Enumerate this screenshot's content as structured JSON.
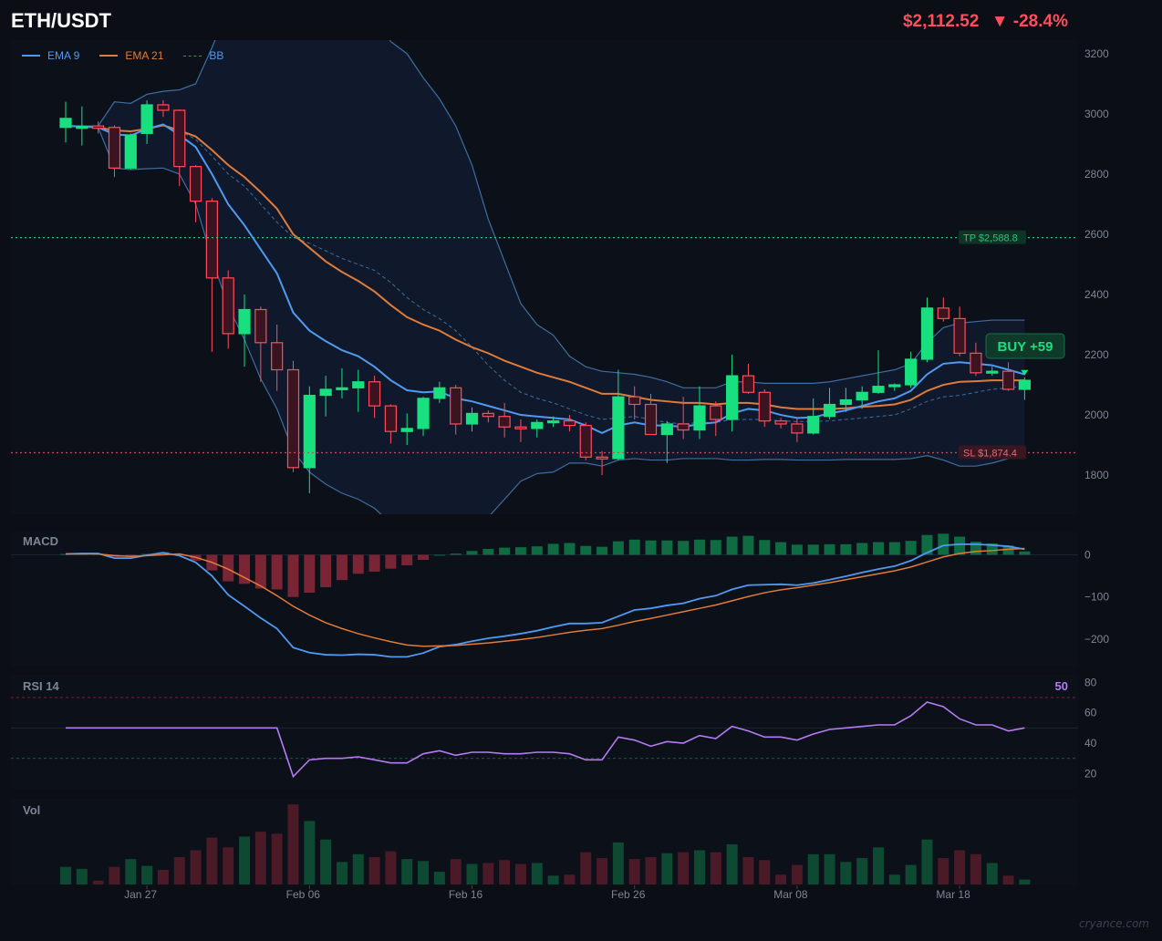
{
  "header": {
    "symbol": "ETH/USDT",
    "price_text": "$2,112.52",
    "change_text": "▼ -28.4%"
  },
  "legend": {
    "ema9_label": "EMA 9",
    "ema21_label": "EMA 21",
    "bb_label": "BB"
  },
  "colors": {
    "background": "#0b0e14",
    "up": "#19e07f",
    "down": "#ff4d5e",
    "ema9": "#4f9af0",
    "ema21": "#e07b39",
    "bb": "#3e6da0",
    "tp": "#1ec97a",
    "sl": "#c94a5e",
    "rsi": "#b57cf2",
    "macd_line": "#4f9af0",
    "signal_line": "#e07b39",
    "buy": "#19e07f"
  },
  "levels": {
    "tp_label": "TP $2,588.8",
    "tp_value": 2588.8,
    "sl_label": "SL $1,874.4",
    "sl_value": 1874.4
  },
  "trade": {
    "label": "BUY  +59"
  },
  "panels": {
    "macd_title": "MACD",
    "rsi_title": "RSI 14",
    "rsi_value_text": "50",
    "vol_title": "Vol"
  },
  "watermark": "cryance.com",
  "chart_data": [
    {
      "type": "candlestick",
      "xlabel": "",
      "ylabel": "",
      "ylim": [
        1670,
        3245
      ],
      "yticks": [
        "1800",
        "2000",
        "2200",
        "2400",
        "2600",
        "2800",
        "3000",
        "3200"
      ],
      "x_tick_labels": [
        "Jan 27",
        "Feb 06",
        "Feb 16",
        "Feb 26",
        "Mar 08",
        "Mar 18"
      ],
      "x_tick_index": [
        5,
        15,
        25,
        35,
        45,
        55
      ],
      "ohlc": [
        [
          2955,
          3040,
          2905,
          2985
        ],
        [
          2955,
          3025,
          2895,
          2958
        ],
        [
          2960,
          2975,
          2935,
          2952
        ],
        [
          2955,
          2962,
          2790,
          2820
        ],
        [
          2820,
          2935,
          2815,
          2930
        ],
        [
          2935,
          3045,
          2900,
          3030
        ],
        [
          3030,
          3045,
          2990,
          3012
        ],
        [
          3012,
          3015,
          2760,
          2825
        ],
        [
          2825,
          2830,
          2640,
          2710
        ],
        [
          2710,
          2720,
          2210,
          2455
        ],
        [
          2455,
          2480,
          2220,
          2270
        ],
        [
          2270,
          2400,
          2160,
          2350
        ],
        [
          2350,
          2360,
          2110,
          2240
        ],
        [
          2240,
          2300,
          2080,
          2150
        ],
        [
          2150,
          2180,
          1810,
          1825
        ],
        [
          1825,
          2095,
          1740,
          2065
        ],
        [
          2065,
          2130,
          1995,
          2085
        ],
        [
          2085,
          2155,
          2055,
          2090
        ],
        [
          2090,
          2150,
          2010,
          2110
        ],
        [
          2110,
          2130,
          1990,
          2030
        ],
        [
          2030,
          2035,
          1905,
          1945
        ],
        [
          1945,
          2005,
          1900,
          1955
        ],
        [
          1955,
          2060,
          1930,
          2055
        ],
        [
          2055,
          2110,
          2040,
          2090
        ],
        [
          2090,
          2100,
          1935,
          1970
        ],
        [
          1970,
          2025,
          1945,
          2005
        ],
        [
          2005,
          2015,
          1975,
          1995
        ],
        [
          1995,
          2040,
          1925,
          1960
        ],
        [
          1960,
          1985,
          1910,
          1955
        ],
        [
          1955,
          1985,
          1925,
          1975
        ],
        [
          1975,
          1995,
          1960,
          1980
        ],
        [
          1980,
          2000,
          1945,
          1965
        ],
        [
          1965,
          1975,
          1850,
          1860
        ],
        [
          1860,
          1880,
          1800,
          1855
        ],
        [
          1855,
          2150,
          1850,
          2060
        ],
        [
          2060,
          2095,
          1985,
          2035
        ],
        [
          2035,
          2070,
          1950,
          1935
        ],
        [
          1935,
          1980,
          1840,
          1970
        ],
        [
          1970,
          2060,
          1920,
          1950
        ],
        [
          1950,
          2095,
          1920,
          2030
        ],
        [
          2030,
          2045,
          1930,
          1985
        ],
        [
          1985,
          2200,
          1945,
          2130
        ],
        [
          2130,
          2170,
          2070,
          2075
        ],
        [
          2075,
          2085,
          1960,
          1980
        ],
        [
          1980,
          1990,
          1955,
          1970
        ],
        [
          1970,
          1990,
          1910,
          1940
        ],
        [
          1940,
          2055,
          1935,
          1995
        ],
        [
          1995,
          2090,
          1985,
          2035
        ],
        [
          2035,
          2090,
          2010,
          2050
        ],
        [
          2050,
          2095,
          2020,
          2075
        ],
        [
          2075,
          2215,
          2070,
          2095
        ],
        [
          2095,
          2105,
          2080,
          2100
        ],
        [
          2100,
          2210,
          2090,
          2185
        ],
        [
          2185,
          2390,
          2175,
          2355
        ],
        [
          2355,
          2390,
          2310,
          2320
        ],
        [
          2320,
          2360,
          2195,
          2205
        ],
        [
          2205,
          2240,
          2130,
          2140
        ],
        [
          2140,
          2160,
          2130,
          2145
        ],
        [
          2145,
          2175,
          2080,
          2085
        ],
        [
          2085,
          2125,
          2050,
          2115
        ]
      ],
      "ema9": [
        2960,
        2958,
        2955,
        2932,
        2928,
        2950,
        2965,
        2930,
        2890,
        2800,
        2700,
        2630,
        2550,
        2470,
        2340,
        2280,
        2245,
        2215,
        2195,
        2160,
        2115,
        2082,
        2075,
        2078,
        2055,
        2045,
        2030,
        2015,
        2000,
        1995,
        1990,
        1985,
        1965,
        1940,
        1965,
        1975,
        1965,
        1965,
        1960,
        1970,
        1975,
        2005,
        2020,
        2015,
        2000,
        1990,
        1992,
        2005,
        2015,
        2030,
        2045,
        2055,
        2080,
        2135,
        2170,
        2175,
        2170,
        2165,
        2150,
        2135
      ],
      "ema21": [
        2960,
        2958,
        2955,
        2945,
        2942,
        2950,
        2962,
        2945,
        2925,
        2880,
        2830,
        2790,
        2740,
        2685,
        2600,
        2555,
        2510,
        2475,
        2445,
        2410,
        2365,
        2325,
        2300,
        2280,
        2250,
        2225,
        2205,
        2180,
        2160,
        2140,
        2125,
        2110,
        2090,
        2070,
        2070,
        2060,
        2050,
        2045,
        2040,
        2040,
        2035,
        2040,
        2040,
        2035,
        2025,
        2020,
        2020,
        2020,
        2022,
        2027,
        2030,
        2035,
        2050,
        2080,
        2100,
        2110,
        2112,
        2115,
        2115,
        2115
      ],
      "bb_upper": [
        2960,
        2960,
        2960,
        3040,
        3035,
        3065,
        3075,
        3080,
        3100,
        3220,
        3350,
        3450,
        3520,
        3560,
        3600,
        3600,
        3550,
        3500,
        3420,
        3330,
        3240,
        3200,
        3120,
        3050,
        2960,
        2830,
        2650,
        2510,
        2370,
        2300,
        2265,
        2195,
        2160,
        2145,
        2140,
        2135,
        2125,
        2110,
        2090,
        2090,
        2090,
        2110,
        2110,
        2105,
        2105,
        2105,
        2105,
        2110,
        2120,
        2130,
        2140,
        2150,
        2170,
        2240,
        2290,
        2305,
        2310,
        2315,
        2315,
        2315
      ],
      "bb_mid": [
        2960,
        2958,
        2955,
        2945,
        2942,
        2950,
        2962,
        2945,
        2915,
        2860,
        2800,
        2760,
        2700,
        2640,
        2590,
        2570,
        2545,
        2520,
        2500,
        2480,
        2440,
        2390,
        2350,
        2320,
        2280,
        2225,
        2165,
        2115,
        2075,
        2055,
        2040,
        2020,
        2000,
        1985,
        1990,
        1995,
        1985,
        1975,
        1970,
        1975,
        1975,
        1985,
        1985,
        1985,
        1980,
        1978,
        1978,
        1980,
        1985,
        1990,
        1995,
        2000,
        2020,
        2045,
        2060,
        2065,
        2075,
        2085,
        2090,
        2095
      ],
      "bb_lower": [
        2960,
        2958,
        2955,
        2820,
        2815,
        2818,
        2820,
        2800,
        2700,
        2520,
        2360,
        2250,
        2120,
        2020,
        1880,
        1810,
        1770,
        1740,
        1720,
        1690,
        1640,
        1580,
        1540,
        1520,
        1530,
        1600,
        1660,
        1720,
        1780,
        1805,
        1810,
        1840,
        1840,
        1830,
        1850,
        1855,
        1850,
        1850,
        1855,
        1855,
        1855,
        1850,
        1850,
        1852,
        1852,
        1850,
        1850,
        1850,
        1852,
        1852,
        1852,
        1852,
        1855,
        1865,
        1850,
        1830,
        1830,
        1840,
        1855,
        1865
      ],
      "volume": [
        18,
        16,
        4,
        18,
        26,
        19,
        15,
        28,
        35,
        48,
        38,
        49,
        54,
        52,
        82,
        65,
        46,
        23,
        31,
        28,
        34,
        26,
        24,
        13,
        26,
        21,
        22,
        25,
        21,
        22,
        9,
        10,
        33,
        27,
        43,
        26,
        28,
        32,
        33,
        35,
        33,
        41,
        28,
        25,
        10,
        20,
        31,
        31,
        23,
        27,
        38,
        10,
        20,
        46,
        27,
        35,
        31,
        22,
        9,
        5
      ]
    },
    {
      "type": "bar+line",
      "title": "MACD",
      "ylim": [
        -265,
        55
      ],
      "yticks": [
        "0",
        "−100",
        "−200"
      ],
      "histogram": [
        2,
        2,
        2,
        -5,
        -4,
        2,
        6,
        -2,
        -14,
        -37,
        -63,
        -69,
        -80,
        -82,
        -100,
        -90,
        -77,
        -60,
        -45,
        -40,
        -33,
        -25,
        -12,
        0,
        3,
        9,
        14,
        17,
        18,
        20,
        26,
        28,
        21,
        19,
        32,
        36,
        34,
        34,
        33,
        36,
        35,
        43,
        45,
        35,
        30,
        24,
        24,
        25,
        25,
        28,
        30,
        30,
        33,
        47,
        50,
        43,
        31,
        27,
        22,
        8
      ],
      "macd": [
        2,
        3,
        3,
        -8,
        -8,
        -1,
        5,
        -2,
        -18,
        -50,
        -95,
        -122,
        -150,
        -175,
        -220,
        -232,
        -237,
        -238,
        -236,
        -237,
        -242,
        -242,
        -233,
        -218,
        -213,
        -205,
        -198,
        -193,
        -187,
        -180,
        -171,
        -163,
        -163,
        -161,
        -146,
        -131,
        -127,
        -120,
        -115,
        -104,
        -97,
        -82,
        -72,
        -71,
        -70,
        -72,
        -67,
        -59,
        -51,
        -42,
        -34,
        -27,
        -14,
        5,
        22,
        25,
        25,
        23,
        20,
        13
      ],
      "signal": [
        2,
        2,
        2,
        -2,
        -4,
        -2,
        0,
        2,
        -6,
        -18,
        -34,
        -54,
        -74,
        -97,
        -122,
        -143,
        -161,
        -175,
        -187,
        -197,
        -206,
        -214,
        -217,
        -216,
        -215,
        -212,
        -209,
        -205,
        -201,
        -196,
        -190,
        -184,
        -179,
        -175,
        -167,
        -158,
        -151,
        -143,
        -135,
        -127,
        -119,
        -109,
        -99,
        -90,
        -83,
        -78,
        -72,
        -66,
        -59,
        -52,
        -45,
        -38,
        -29,
        -17,
        -5,
        3,
        8,
        10,
        13,
        15
      ]
    },
    {
      "type": "line",
      "title": "RSI 14",
      "ylim": [
        10,
        85
      ],
      "yticks": [
        "80",
        "60",
        "40",
        "20"
      ],
      "levels": [
        70,
        50,
        30
      ],
      "values": [
        50,
        50,
        50,
        50,
        50,
        50,
        50,
        50,
        50,
        50,
        50,
        50,
        50,
        50,
        18,
        29,
        30,
        30,
        31,
        29,
        27,
        27,
        33,
        35,
        32,
        34,
        34,
        33,
        33,
        34,
        34,
        33,
        29,
        29,
        44,
        42,
        38,
        41,
        40,
        45,
        43,
        51,
        48,
        44,
        44,
        42,
        46,
        49,
        50,
        51,
        52,
        52,
        58,
        67,
        64,
        56,
        52,
        52,
        48,
        50
      ]
    }
  ]
}
